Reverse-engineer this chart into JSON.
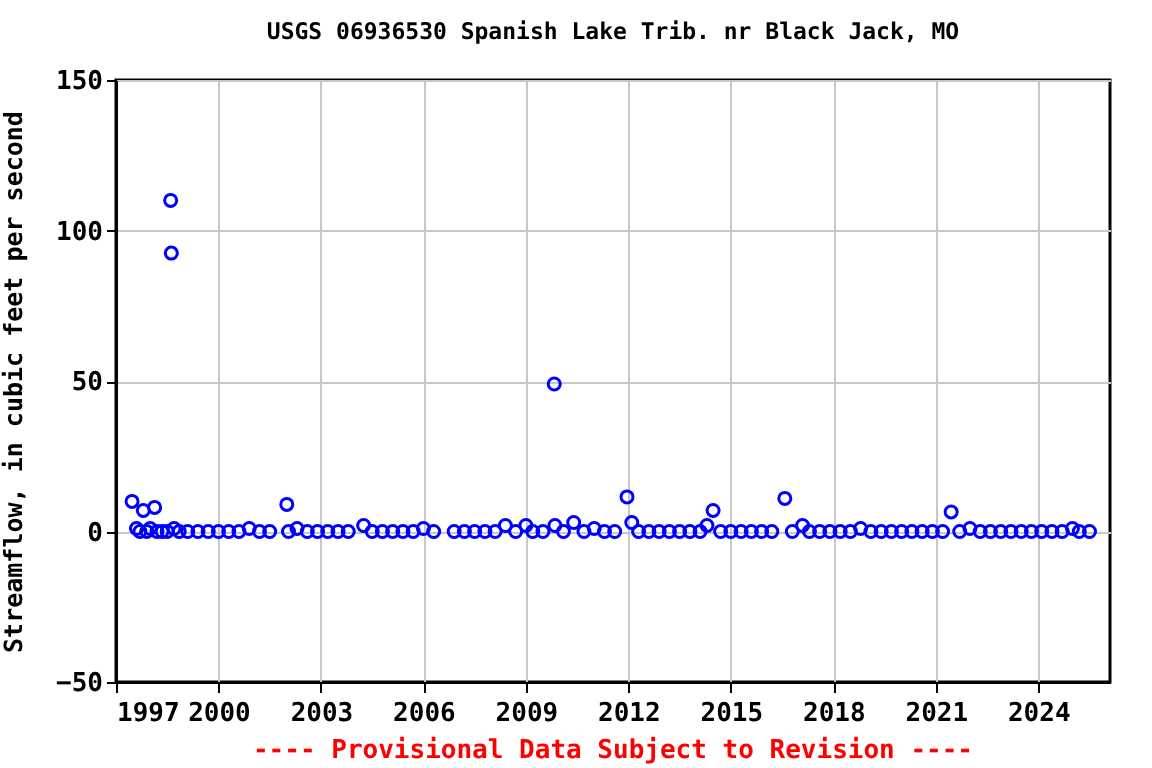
{
  "chart_data": {
    "type": "scatter",
    "title": "USGS 06936530 Spanish Lake Trib. nr Black Jack, MO",
    "ylabel": "Streamflow, in cubic feet per second",
    "annotations": [
      "---- Provisional Data Subject to Revision ----"
    ],
    "x": [
      1997.47,
      1997.6,
      1997.7,
      1997.8,
      1997.9,
      1998.0,
      1998.13,
      1998.2,
      1998.35,
      1998.5,
      1998.6,
      1998.62,
      1998.7,
      1998.85,
      1999.1,
      1999.4,
      1999.7,
      2000.0,
      2000.3,
      2000.6,
      2000.9,
      2001.2,
      2001.5,
      2002.0,
      2002.05,
      2002.3,
      2002.6,
      2002.9,
      2003.2,
      2003.5,
      2003.8,
      2004.25,
      2004.5,
      2004.8,
      2005.1,
      2005.4,
      2005.7,
      2006.0,
      2006.3,
      2006.9,
      2007.2,
      2007.5,
      2007.8,
      2008.1,
      2008.4,
      2008.7,
      2009.0,
      2009.2,
      2009.5,
      2009.83,
      2009.85,
      2010.1,
      2010.4,
      2010.7,
      2011.0,
      2011.3,
      2011.6,
      2011.96,
      2012.1,
      2012.3,
      2012.6,
      2012.9,
      2013.2,
      2013.5,
      2013.8,
      2014.1,
      2014.3,
      2014.48,
      2014.7,
      2015.0,
      2015.3,
      2015.6,
      2015.9,
      2016.2,
      2016.58,
      2016.8,
      2017.1,
      2017.3,
      2017.6,
      2017.9,
      2018.2,
      2018.5,
      2018.8,
      2019.1,
      2019.4,
      2019.7,
      2020.0,
      2020.3,
      2020.6,
      2020.9,
      2021.2,
      2021.45,
      2021.7,
      2022.0,
      2022.3,
      2022.6,
      2022.9,
      2023.2,
      2023.5,
      2023.8,
      2024.1,
      2024.4,
      2024.7,
      2025.0,
      2025.2,
      2025.5
    ],
    "series": [
      {
        "color": "#0000ff",
        "values": [
          10,
          1,
          0,
          7,
          0,
          1,
          8,
          0,
          0,
          0,
          110,
          92.5,
          1,
          0,
          0,
          0,
          0,
          0,
          0,
          0,
          1,
          0,
          0,
          9,
          0,
          1,
          0,
          0,
          0,
          0,
          0,
          2,
          0,
          0,
          0,
          0,
          0,
          1,
          0,
          0,
          0,
          0,
          0,
          0,
          2,
          0,
          2,
          0,
          0,
          49,
          2,
          0,
          3,
          0,
          1,
          0,
          0,
          11.5,
          3,
          0,
          0,
          0,
          0,
          0,
          0,
          0,
          2,
          7,
          0,
          0,
          0,
          0,
          0,
          0,
          11,
          0,
          2,
          0,
          0,
          0,
          0,
          0,
          1,
          0,
          0,
          0,
          0,
          0,
          0,
          0,
          0,
          6.5,
          0,
          1,
          0,
          0,
          0,
          0,
          0,
          0,
          0,
          0,
          0,
          1,
          0,
          0
        ]
      }
    ],
    "xlim": [
      1997,
      2026.1
    ],
    "xticks": [
      1997,
      2000,
      2003,
      2006,
      2009,
      2012,
      2015,
      2018,
      2021,
      2024
    ],
    "ylim": [
      -50,
      150
    ],
    "yticks": [
      -50,
      0,
      50,
      100,
      150
    ],
    "grid": true,
    "marker": "circle"
  }
}
